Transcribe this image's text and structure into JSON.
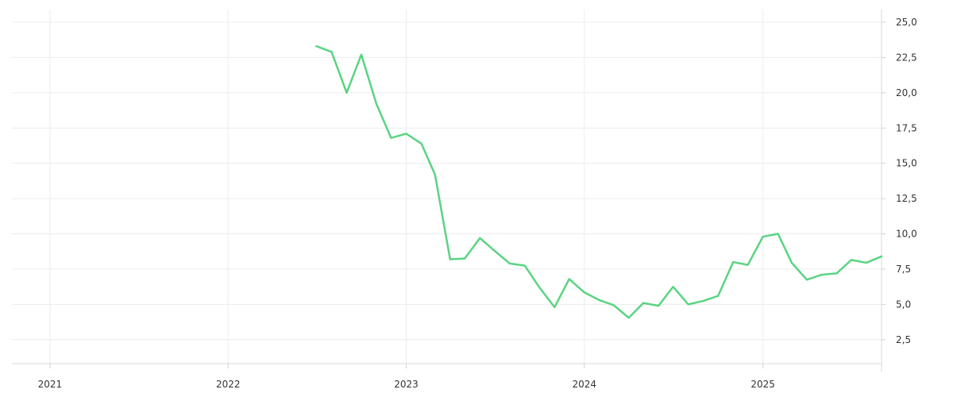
{
  "chart_data": {
    "type": "line",
    "title": "",
    "xlabel": "",
    "ylabel": "",
    "x_tick_labels": [
      "2021",
      "2022",
      "2023",
      "2024",
      "2025"
    ],
    "y_tick_labels": [
      "2,5",
      "5,0",
      "7,5",
      "10,0",
      "12,5",
      "15,0",
      "17,5",
      "20,0",
      "22,5",
      "25,0"
    ],
    "xlim": [
      "2020-10-15",
      "2025-09-01"
    ],
    "ylim": [
      0.8,
      25.9
    ],
    "y_axis_side": "right",
    "grid": true,
    "series": [
      {
        "color": "#5ad482",
        "x": [
          "2022-07-01",
          "2022-08-01",
          "2022-09-01",
          "2022-10-01",
          "2022-11-01",
          "2022-12-01",
          "2023-01-01",
          "2023-02-01",
          "2023-03-01",
          "2023-04-01",
          "2023-05-01",
          "2023-06-01",
          "2023-07-01",
          "2023-08-01",
          "2023-09-01",
          "2023-10-01",
          "2023-11-01",
          "2023-12-01",
          "2024-01-01",
          "2024-02-01",
          "2024-03-01",
          "2024-04-01",
          "2024-05-01",
          "2024-06-01",
          "2024-07-01",
          "2024-08-01",
          "2024-09-01",
          "2024-10-01",
          "2024-11-01",
          "2024-12-01",
          "2025-01-01",
          "2025-02-01",
          "2025-03-01",
          "2025-04-01",
          "2025-05-01",
          "2025-06-01",
          "2025-07-01",
          "2025-08-01",
          "2025-09-01"
        ],
        "y": [
          23.3,
          22.9,
          20.0,
          22.7,
          19.2,
          16.8,
          17.1,
          16.4,
          14.2,
          8.2,
          8.25,
          9.7,
          8.8,
          7.9,
          7.75,
          6.2,
          4.8,
          6.8,
          5.85,
          5.3,
          4.95,
          4.05,
          5.1,
          4.9,
          6.25,
          5.0,
          5.25,
          5.6,
          8.0,
          7.8,
          9.8,
          10.0,
          7.95,
          6.75,
          7.1,
          7.2,
          8.15,
          7.95,
          8.4
        ]
      }
    ]
  }
}
